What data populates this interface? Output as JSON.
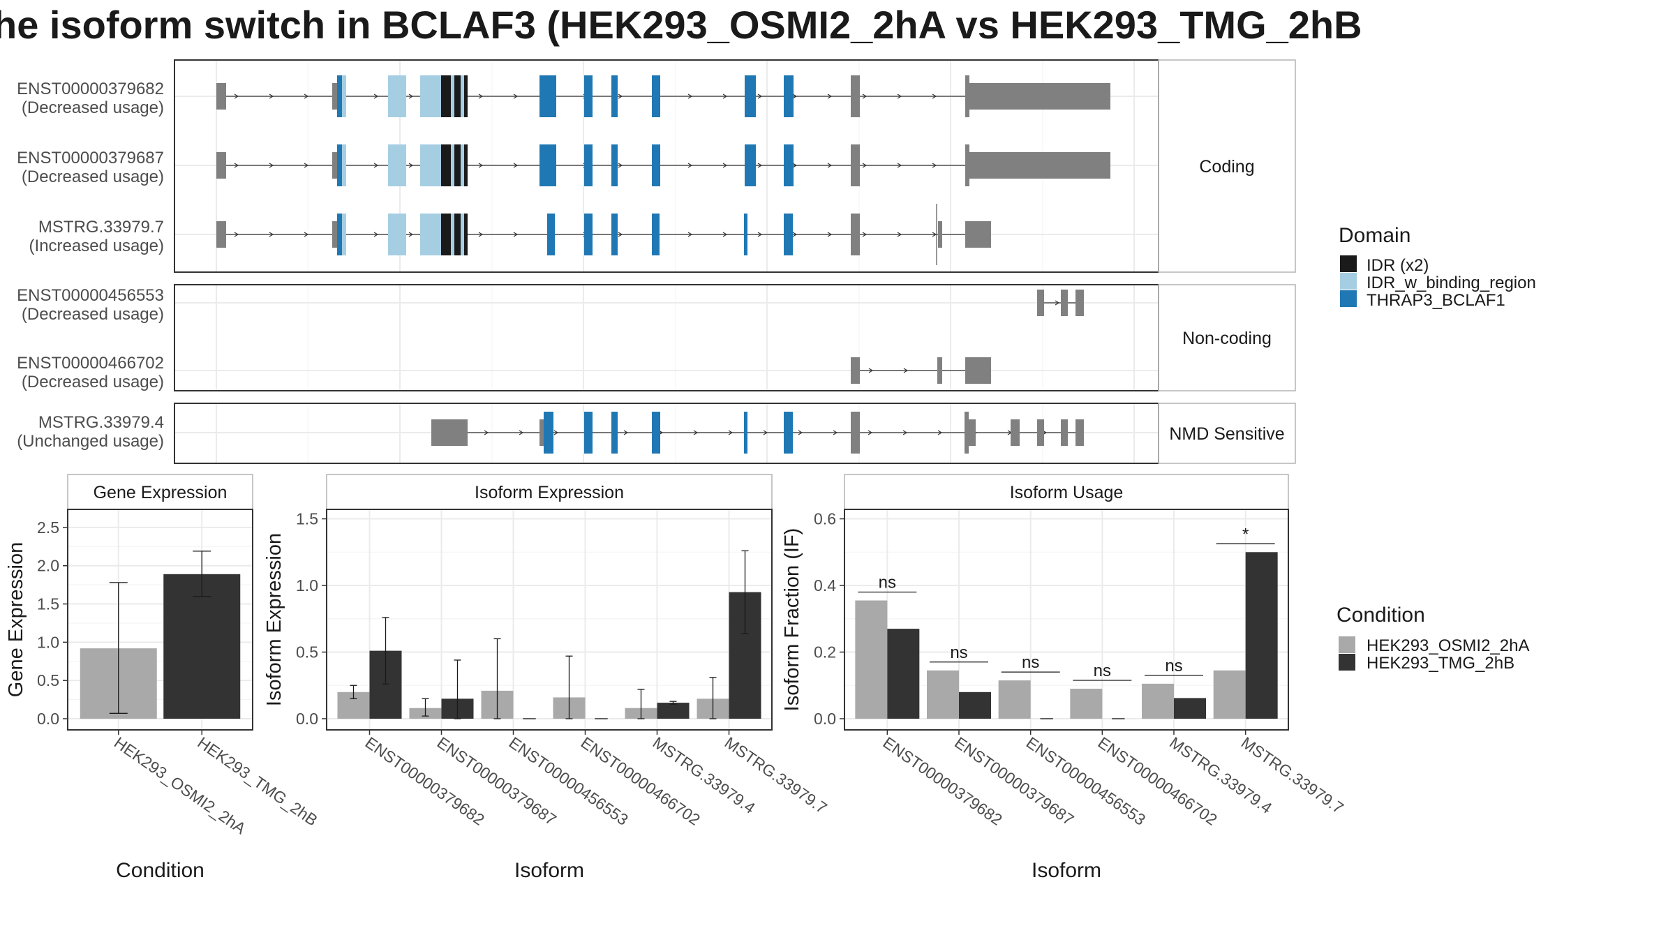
{
  "title": "he isoform switch in BCLAF3 (HEK293_OSMI2_2hA vs HEK293_TMG_2hB",
  "colors": {
    "exon": "#808080",
    "idr": "#1a1a1a",
    "idr_w_binding_region": "#a6cee3",
    "thrap3_bclaf1": "#1f78b4",
    "cond_a": "#a9a9a9",
    "cond_b": "#333333",
    "panel_border": "#333333",
    "strip_border": "#b3b3b3",
    "grid": "#ebebeb"
  },
  "structure": {
    "groups": [
      {
        "label": "Coding",
        "transcripts": [
          {
            "id": "ENST00000379682",
            "usage": "(Decreased usage)"
          },
          {
            "id": "ENST00000379687",
            "usage": "(Decreased usage)"
          },
          {
            "id": "MSTRG.33979.7",
            "usage": "(Increased usage)"
          }
        ]
      },
      {
        "label": "Non-coding",
        "transcripts": [
          {
            "id": "ENST00000456553",
            "usage": "(Decreased usage)"
          },
          {
            "id": "ENST00000466702",
            "usage": "(Decreased usage)"
          }
        ]
      },
      {
        "label": "NMD Sensitive",
        "transcripts": [
          {
            "id": "MSTRG.33979.4",
            "usage": "(Unchanged usage)"
          }
        ]
      }
    ],
    "domain_legend": {
      "title": "Domain",
      "items": [
        {
          "label": "IDR (x2)",
          "color_key": "idr"
        },
        {
          "label": "IDR_w_binding_region",
          "color_key": "idr_w_binding_region"
        },
        {
          "label": "THRAP3_BCLAF1",
          "color_key": "thrap3_bclaf1"
        }
      ]
    }
  },
  "condition_legend": {
    "title": "Condition",
    "items": [
      {
        "label": "HEK293_OSMI2_2hA",
        "color_key": "cond_a"
      },
      {
        "label": "HEK293_TMG_2hB",
        "color_key": "cond_b"
      }
    ]
  },
  "chart_data": [
    {
      "type": "bar",
      "title": "Gene Expression",
      "xlabel": "Condition",
      "ylabel": "Gene Expression",
      "ylim": [
        0,
        2.7
      ],
      "yticks": [
        0.0,
        0.5,
        1.0,
        1.5,
        2.0,
        2.5
      ],
      "ytick_labels": [
        "0.0",
        "0.5",
        "1.0",
        "1.5",
        "2.0",
        "2.5"
      ],
      "categories": [
        "HEK293_OSMI2_2hA",
        "HEK293_TMG_2hB"
      ],
      "values": [
        0.92,
        1.89
      ],
      "error_low": [
        0.07,
        1.6
      ],
      "error_high": [
        1.78,
        2.19
      ]
    },
    {
      "type": "bar",
      "title": "Isoform Expression",
      "xlabel": "Isoform",
      "ylabel": "Isoform Expression",
      "ylim": [
        0,
        1.55
      ],
      "yticks": [
        0.0,
        0.5,
        1.0,
        1.5
      ],
      "ytick_labels": [
        "0.0",
        "0.5",
        "1.0",
        "1.5"
      ],
      "categories": [
        "ENST00000379682",
        "ENST00000379687",
        "ENST00000456553",
        "ENST00000466702",
        "MSTRG.33979.4",
        "MSTRG.33979.7"
      ],
      "series": [
        {
          "name": "HEK293_OSMI2_2hA",
          "values": [
            0.2,
            0.08,
            0.21,
            0.16,
            0.08,
            0.15
          ],
          "error_low": [
            0.15,
            0.02,
            0.0,
            0.0,
            0.0,
            0.0
          ],
          "error_high": [
            0.25,
            0.15,
            0.6,
            0.47,
            0.22,
            0.31
          ]
        },
        {
          "name": "HEK293_TMG_2hB",
          "values": [
            0.51,
            0.15,
            0.0,
            0.0,
            0.12,
            0.95
          ],
          "error_low": [
            0.26,
            0.0,
            0.0,
            0.0,
            0.11,
            0.64
          ],
          "error_high": [
            0.76,
            0.44,
            0.0,
            0.0,
            0.13,
            1.26
          ]
        }
      ]
    },
    {
      "type": "bar",
      "title": "Isoform Usage",
      "xlabel": "Isoform",
      "ylabel": "Isoform Fraction (IF)",
      "ylim": [
        0,
        0.62
      ],
      "yticks": [
        0.0,
        0.2,
        0.4,
        0.6
      ],
      "ytick_labels": [
        "0.0",
        "0.2",
        "0.4",
        "0.6"
      ],
      "categories": [
        "ENST00000379682",
        "ENST00000379687",
        "ENST00000456553",
        "ENST00000466702",
        "MSTRG.33979.4",
        "MSTRG.33979.7"
      ],
      "series": [
        {
          "name": "HEK293_OSMI2_2hA",
          "values": [
            0.355,
            0.145,
            0.115,
            0.09,
            0.105,
            0.145
          ]
        },
        {
          "name": "HEK293_TMG_2hB",
          "values": [
            0.27,
            0.08,
            0.0,
            0.0,
            0.062,
            0.5
          ]
        }
      ],
      "significance": [
        "ns",
        "ns",
        "ns",
        "ns",
        "ns",
        "*"
      ]
    }
  ]
}
